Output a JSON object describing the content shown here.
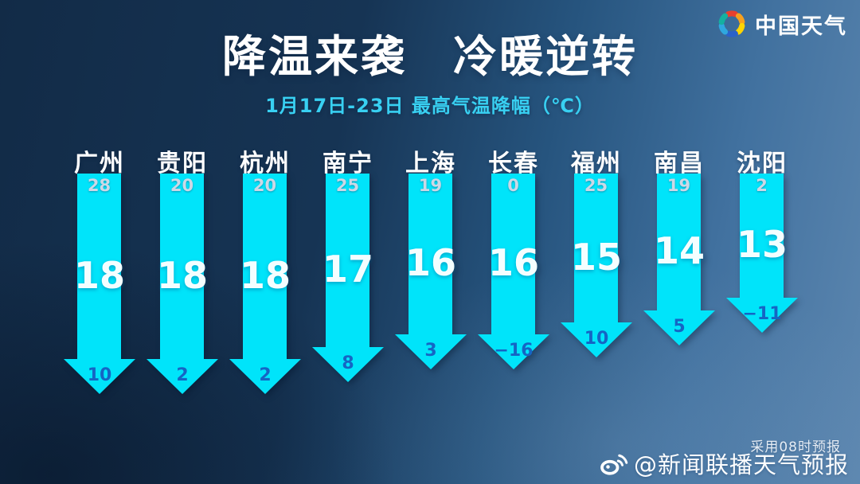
{
  "header": {
    "logo_text": "中国天气",
    "title": "降温来袭　冷暖逆转",
    "subtitle": "1月17日-23日  最高气温降幅（℃）"
  },
  "colors": {
    "arrow_cyan": "#00e4fa",
    "subtitle_cyan": "#38d0f2",
    "end_value_blue": "#1565c4",
    "start_value_gray": "#ccd8e6",
    "drop_value_white": "#f4feff"
  },
  "chart_data": {
    "type": "bar",
    "title": "降温来袭 冷暖逆转",
    "subtitle": "1月17日-23日 最高气温降幅（℃）",
    "unit": "℃",
    "orientation": "downward-arrows",
    "legend": false,
    "categories": [
      "广州",
      "贵阳",
      "杭州",
      "南宁",
      "上海",
      "长春",
      "福州",
      "南昌",
      "沈阳"
    ],
    "series": [
      {
        "name": "start_temp",
        "values": [
          28,
          20,
          20,
          25,
          19,
          0,
          25,
          19,
          2
        ]
      },
      {
        "name": "temp_drop",
        "values": [
          18,
          18,
          18,
          17,
          16,
          16,
          15,
          14,
          13
        ]
      },
      {
        "name": "end_temp",
        "values": [
          10,
          2,
          2,
          8,
          3,
          -16,
          10,
          5,
          -11
        ]
      }
    ]
  },
  "footer": {
    "note": "采用08时预报",
    "weibo_handle": "@新闻联播天气预报"
  }
}
